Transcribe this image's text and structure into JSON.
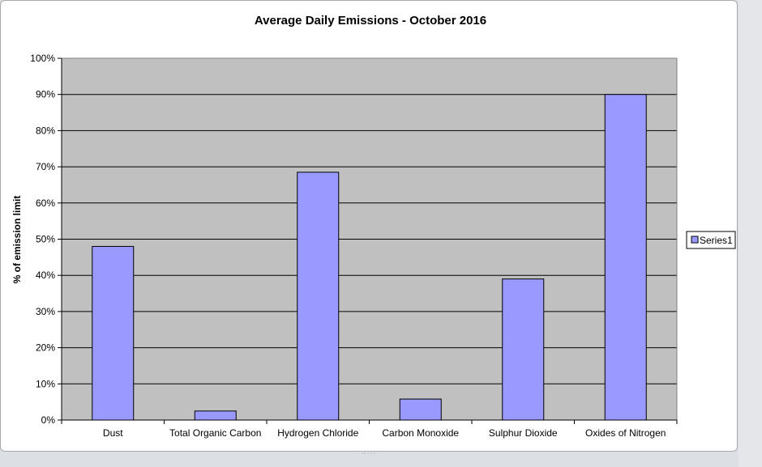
{
  "chart_data": {
    "type": "bar",
    "title": "Average Daily Emissions - October 2016",
    "ylabel": "% of emission limit",
    "xlabel": "",
    "categories": [
      "Dust",
      "Total Organic Carbon",
      "Hydrogen Chloride",
      "Carbon Monoxide",
      "Sulphur Dioxide",
      "Oxides of Nitrogen"
    ],
    "series": [
      {
        "name": "Series1",
        "values": [
          48,
          2.5,
          68.5,
          5.8,
          39,
          90
        ]
      }
    ],
    "ylim": [
      0,
      100
    ],
    "yticks": [
      0,
      10,
      20,
      30,
      40,
      50,
      60,
      70,
      80,
      90,
      100
    ],
    "ytick_labels": [
      "0%",
      "10%",
      "20%",
      "30%",
      "40%",
      "50%",
      "60%",
      "70%",
      "80%",
      "90%",
      "100%"
    ],
    "grid": true,
    "legend_position": "right",
    "colors": {
      "bar_fill": "#9999ff",
      "bar_stroke": "#000000",
      "plot_background": "#c0c0c0",
      "gridline": "#000000"
    }
  }
}
